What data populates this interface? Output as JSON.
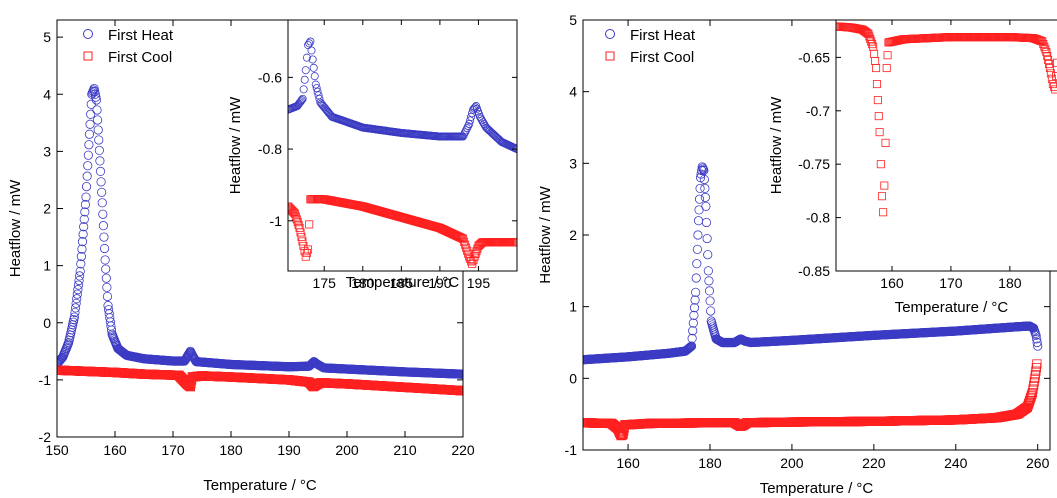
{
  "chart_data": [
    {
      "type": "scatter",
      "id": "left-main",
      "title": "",
      "xlabel": "Temperature / °C",
      "ylabel": "Heatflow / mW",
      "xlim": [
        150,
        220
      ],
      "ylim": [
        -2,
        5.3
      ],
      "xticks": [
        "150",
        "160",
        "170",
        "180",
        "190",
        "200",
        "210",
        "220"
      ],
      "yticks": [
        "-2",
        "-1",
        "0",
        "1",
        "2",
        "3",
        "4",
        "5"
      ],
      "legend": [
        "First Heat",
        "First Cool"
      ],
      "legend_position": "top-left",
      "series": [
        {
          "name": "First Heat",
          "color": "#3b3bc4",
          "marker": "circle",
          "points": [
            [
              150,
              -0.72
            ],
            [
              151,
              -0.6
            ],
            [
              152,
              -0.35
            ],
            [
              153,
              0.1
            ],
            [
              154,
              0.9
            ],
            [
              155,
              2.2
            ],
            [
              155.6,
              3.3
            ],
            [
              156,
              4.0
            ],
            [
              156.4,
              4.1
            ],
            [
              156.8,
              3.9
            ],
            [
              157.2,
              3.2
            ],
            [
              157.8,
              2.1
            ],
            [
              158.3,
              1.1
            ],
            [
              158.8,
              0.3
            ],
            [
              159.5,
              -0.2
            ],
            [
              160.5,
              -0.45
            ],
            [
              162,
              -0.57
            ],
            [
              165,
              -0.63
            ],
            [
              170,
              -0.67
            ],
            [
              172,
              -0.67
            ],
            [
              172.7,
              -0.55
            ],
            [
              173,
              -0.5
            ],
            [
              173.4,
              -0.58
            ],
            [
              174,
              -0.68
            ],
            [
              180,
              -0.73
            ],
            [
              190,
              -0.77
            ],
            [
              193.5,
              -0.76
            ],
            [
              194.3,
              -0.68
            ],
            [
              194.8,
              -0.72
            ],
            [
              196,
              -0.79
            ],
            [
              200,
              -0.81
            ],
            [
              210,
              -0.86
            ],
            [
              220,
              -0.9
            ]
          ]
        },
        {
          "name": "First Cool",
          "color": "#ff2020",
          "marker": "square",
          "points": [
            [
              150,
              -0.83
            ],
            [
              160,
              -0.87
            ],
            [
              165,
              -0.9
            ],
            [
              171,
              -0.92
            ],
            [
              172.5,
              -1.08
            ],
            [
              173,
              -1.12
            ],
            [
              173.3,
              -0.95
            ],
            [
              175,
              -0.93
            ],
            [
              180,
              -0.95
            ],
            [
              190,
              -1.0
            ],
            [
              193.5,
              -1.04
            ],
            [
              194.2,
              -1.12
            ],
            [
              194.8,
              -1.08
            ],
            [
              195.5,
              -1.05
            ],
            [
              200,
              -1.07
            ],
            [
              210,
              -1.13
            ],
            [
              220,
              -1.19
            ]
          ]
        }
      ]
    },
    {
      "type": "scatter",
      "id": "left-inset",
      "title": "",
      "xlabel": "Temperature / °C",
      "ylabel": "Heatflow / mW",
      "xlim": [
        170.3,
        200
      ],
      "ylim": [
        -1.14,
        -0.44
      ],
      "xticks": [
        "175",
        "180",
        "185",
        "190",
        "195"
      ],
      "yticks": [
        "-0.6",
        "-0.8",
        "-1"
      ],
      "series": [
        {
          "name": "First Heat",
          "color": "#3b3bc4",
          "marker": "circle",
          "points": [
            [
              170.3,
              -0.69
            ],
            [
              171.5,
              -0.68
            ],
            [
              172.2,
              -0.66
            ],
            [
              172.6,
              -0.58
            ],
            [
              172.9,
              -0.51
            ],
            [
              173.2,
              -0.5
            ],
            [
              173.5,
              -0.55
            ],
            [
              173.9,
              -0.62
            ],
            [
              174.5,
              -0.67
            ],
            [
              176,
              -0.71
            ],
            [
              180,
              -0.74
            ],
            [
              185,
              -0.755
            ],
            [
              190,
              -0.765
            ],
            [
              193,
              -0.765
            ],
            [
              193.8,
              -0.73
            ],
            [
              194.3,
              -0.69
            ],
            [
              194.7,
              -0.68
            ],
            [
              195.2,
              -0.71
            ],
            [
              196,
              -0.74
            ],
            [
              198,
              -0.78
            ],
            [
              200,
              -0.8
            ]
          ]
        },
        {
          "name": "First Cool",
          "color": "#ff2020",
          "marker": "square",
          "points": [
            [
              170.3,
              -0.96
            ],
            [
              171.2,
              -0.98
            ],
            [
              171.8,
              -1.02
            ],
            [
              172.3,
              -1.07
            ],
            [
              172.6,
              -1.1
            ],
            [
              172.9,
              -1.08
            ],
            [
              173.2,
              -0.94
            ],
            [
              175,
              -0.94
            ],
            [
              180,
              -0.96
            ],
            [
              185,
              -0.99
            ],
            [
              190,
              -1.02
            ],
            [
              193,
              -1.05
            ],
            [
              193.8,
              -1.1
            ],
            [
              194.2,
              -1.12
            ],
            [
              194.5,
              -1.1
            ],
            [
              195,
              -1.07
            ],
            [
              195.5,
              -1.06
            ],
            [
              200,
              -1.06
            ]
          ]
        }
      ]
    },
    {
      "type": "scatter",
      "id": "right-main",
      "title": "",
      "xlabel": "Temperature / °C",
      "ylabel": "Heatflow / mW",
      "xlim": [
        149,
        263
      ],
      "ylim": [
        -1,
        5
      ],
      "xticks": [
        "160",
        "180",
        "200",
        "220",
        "240",
        "260"
      ],
      "yticks": [
        "-1",
        "0",
        "1",
        "2",
        "3",
        "4",
        "5"
      ],
      "legend": [
        "First Heat",
        "First Cool"
      ],
      "legend_position": "top-left",
      "series": [
        {
          "name": "First Heat",
          "color": "#3b3bc4",
          "marker": "circle",
          "points": [
            [
              149,
              0.26
            ],
            [
              160,
              0.3
            ],
            [
              170,
              0.35
            ],
            [
              174,
              0.38
            ],
            [
              175.5,
              0.45
            ],
            [
              176.5,
              1.2
            ],
            [
              177.2,
              2.2
            ],
            [
              177.7,
              2.8
            ],
            [
              178.1,
              2.95
            ],
            [
              178.5,
              2.9
            ],
            [
              179,
              2.4
            ],
            [
              179.6,
              1.5
            ],
            [
              180.3,
              0.8
            ],
            [
              181.5,
              0.55
            ],
            [
              183,
              0.5
            ],
            [
              186,
              0.5
            ],
            [
              187.5,
              0.55
            ],
            [
              188.5,
              0.52
            ],
            [
              190,
              0.5
            ],
            [
              200,
              0.53
            ],
            [
              220,
              0.6
            ],
            [
              240,
              0.66
            ],
            [
              255,
              0.72
            ],
            [
              258,
              0.73
            ],
            [
              259,
              0.7
            ],
            [
              259.6,
              0.6
            ],
            [
              260,
              0.45
            ]
          ]
        },
        {
          "name": "First Cool",
          "color": "#ff2020",
          "marker": "square",
          "points": [
            [
              149,
              -0.62
            ],
            [
              156,
              -0.63
            ],
            [
              157.5,
              -0.7
            ],
            [
              158.3,
              -0.8
            ],
            [
              158.8,
              -0.78
            ],
            [
              159.2,
              -0.65
            ],
            [
              165,
              -0.63
            ],
            [
              180,
              -0.62
            ],
            [
              186,
              -0.62
            ],
            [
              187.5,
              -0.67
            ],
            [
              188.3,
              -0.65
            ],
            [
              189,
              -0.62
            ],
            [
              200,
              -0.61
            ],
            [
              220,
              -0.6
            ],
            [
              240,
              -0.58
            ],
            [
              250,
              -0.55
            ],
            [
              255,
              -0.5
            ],
            [
              257.5,
              -0.4
            ],
            [
              258.7,
              -0.2
            ],
            [
              259.3,
              0.0
            ],
            [
              259.8,
              0.2
            ]
          ]
        }
      ]
    },
    {
      "type": "scatter",
      "id": "right-inset",
      "title": "",
      "xlabel": "Temperature / °C",
      "ylabel": "Heatflow / mW",
      "xlim": [
        150.5,
        188
      ],
      "ylim": [
        -0.85,
        -0.615
      ],
      "xticks": [
        "160",
        "170",
        "180"
      ],
      "yticks": [
        "-0.65",
        "-0.7",
        "-0.75",
        "-0.8",
        "-0.85"
      ],
      "series": [
        {
          "name": "First Cool",
          "color": "#ff2020",
          "marker": "square",
          "points": [
            [
              150.5,
              -0.621
            ],
            [
              153,
              -0.622
            ],
            [
              155,
              -0.624
            ],
            [
              156,
              -0.628
            ],
            [
              156.8,
              -0.64
            ],
            [
              157.3,
              -0.66
            ],
            [
              157.6,
              -0.69
            ],
            [
              157.9,
              -0.72
            ],
            [
              158.1,
              -0.75
            ],
            [
              158.3,
              -0.78
            ],
            [
              158.5,
              -0.795
            ],
            [
              158.7,
              -0.77
            ],
            [
              158.9,
              -0.73
            ],
            [
              159.1,
              -0.66
            ],
            [
              159.4,
              -0.636
            ],
            [
              162,
              -0.633
            ],
            [
              170,
              -0.631
            ],
            [
              180,
              -0.631
            ],
            [
              184,
              -0.632
            ],
            [
              185.5,
              -0.635
            ],
            [
              186.2,
              -0.645
            ],
            [
              186.8,
              -0.66
            ],
            [
              187.3,
              -0.675
            ],
            [
              187.7,
              -0.68
            ],
            [
              188,
              -0.655
            ]
          ]
        }
      ]
    }
  ]
}
